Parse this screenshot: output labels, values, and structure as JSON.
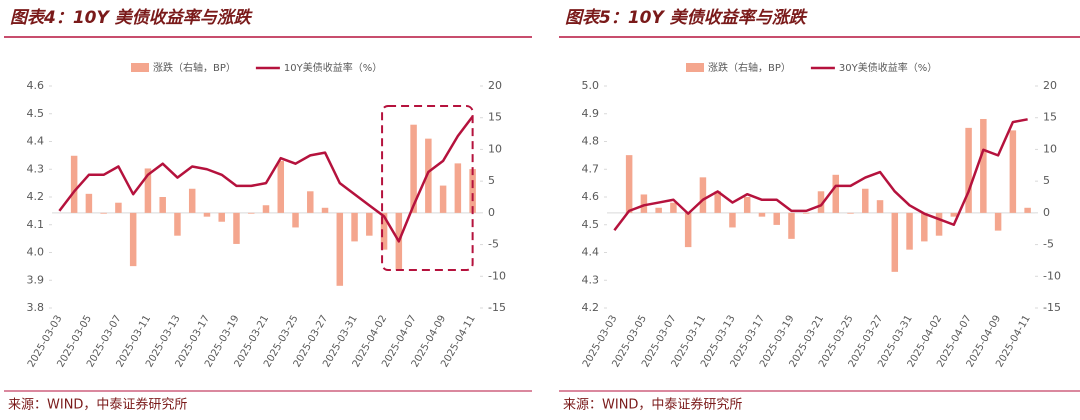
{
  "chart_data": [
    {
      "type": "combo",
      "title": "图表4：10Y 美债收益率与涨跌",
      "source": "来源：WIND，中泰证券研究所",
      "categories": [
        "2025-03-03",
        null,
        "2025-03-05",
        null,
        "2025-03-07",
        null,
        "2025-03-11",
        null,
        "2025-03-13",
        null,
        "2025-03-17",
        null,
        "2025-03-19",
        null,
        "2025-03-21",
        null,
        "2025-03-25",
        null,
        "2025-03-27",
        null,
        "2025-03-31",
        null,
        "2025-04-02",
        null,
        "2025-04-07",
        null,
        "2025-04-09",
        null,
        "2025-04-11"
      ],
      "series": [
        {
          "name": "涨跌（右轴，BP）",
          "color": "#f4a68e",
          "axis": "y2",
          "kind": "bar",
          "values": [
            null,
            9,
            3,
            0,
            1.6,
            -8.4,
            7,
            2.5,
            -3.6,
            3.8,
            -0.6,
            -1.4,
            -4.9,
            0,
            1.2,
            8.2,
            -2.3,
            3.4,
            0.8,
            -11.5,
            -4.5,
            -3.6,
            -5.8,
            -9,
            13.9,
            11.7,
            4.3,
            7.8,
            6.9
          ]
        },
        {
          "name": "10Y美债收益率（%）",
          "color": "#b5123d",
          "kind": "line",
          "values": [
            4.15,
            4.22,
            4.28,
            4.28,
            4.31,
            4.21,
            4.28,
            4.32,
            4.27,
            4.31,
            4.3,
            4.28,
            4.24,
            4.24,
            4.25,
            4.34,
            4.32,
            4.35,
            4.36,
            4.25,
            4.21,
            4.17,
            4.13,
            4.04,
            4.17,
            4.29,
            4.33,
            4.42,
            4.49
          ]
        }
      ],
      "ylim": [
        3.8,
        4.6
      ],
      "yticks": [
        3.8,
        3.9,
        {
          "value": 4,
          "label": "4.0"
        },
        4.1,
        4.2,
        4.3,
        4.4,
        4.5,
        4.6
      ],
      "y2lim": [
        -15,
        20
      ],
      "y2ticks": [
        -15,
        -10,
        -5,
        0,
        5,
        10,
        15,
        20
      ],
      "legend": "top"
    },
    {
      "type": "combo",
      "title": "图表5：10Y 美债收益率与涨跌",
      "source": "来源：WIND，中泰证券研究所",
      "categories": [
        "2025-03-03",
        null,
        "2025-03-05",
        null,
        "2025-03-07",
        null,
        "2025-03-11",
        null,
        "2025-03-13",
        null,
        "2025-03-17",
        null,
        "2025-03-19",
        null,
        "2025-03-21",
        null,
        "2025-03-25",
        null,
        "2025-03-27",
        null,
        "2025-03-31",
        null,
        "2025-04-02",
        null,
        "2025-04-07",
        null,
        "2025-04-09",
        null,
        "2025-04-11"
      ],
      "series": [
        {
          "name": "涨跌（右轴，BP）",
          "color": "#f4a68e",
          "axis": "y2",
          "kind": "bar",
          "values": [
            null,
            9.1,
            2.9,
            0.8,
            1.6,
            -5.4,
            5.6,
            3.4,
            -2.3,
            2.5,
            -0.6,
            -1.9,
            -4.1,
            0,
            3.4,
            6,
            -0.1,
            3.8,
            2,
            -9.3,
            -5.8,
            -4.5,
            -3.6,
            -0.6,
            13.4,
            14.8,
            -2.8,
            13,
            0.8
          ]
        },
        {
          "name": "30Y美债收益率（%）",
          "color": "#b5123d",
          "kind": "line",
          "values": [
            4.48,
            4.55,
            4.57,
            4.58,
            4.59,
            4.54,
            4.59,
            4.62,
            4.58,
            4.61,
            4.59,
            4.59,
            4.55,
            4.55,
            4.57,
            4.64,
            4.64,
            4.67,
            4.69,
            4.62,
            4.57,
            4.54,
            4.52,
            4.5,
            4.62,
            4.77,
            4.75,
            4.87,
            4.88
          ]
        }
      ],
      "ylim": [
        4.2,
        5.0
      ],
      "yticks": [
        4.2,
        4.3,
        4.4,
        4.5,
        4.6,
        4.7,
        4.8,
        4.9,
        {
          "value": 5,
          "label": "5.0"
        }
      ],
      "y2lim": [
        -15,
        20
      ],
      "y2ticks": [
        -15,
        -10,
        -5,
        0,
        5,
        10,
        15,
        20
      ],
      "legend": "top"
    }
  ]
}
